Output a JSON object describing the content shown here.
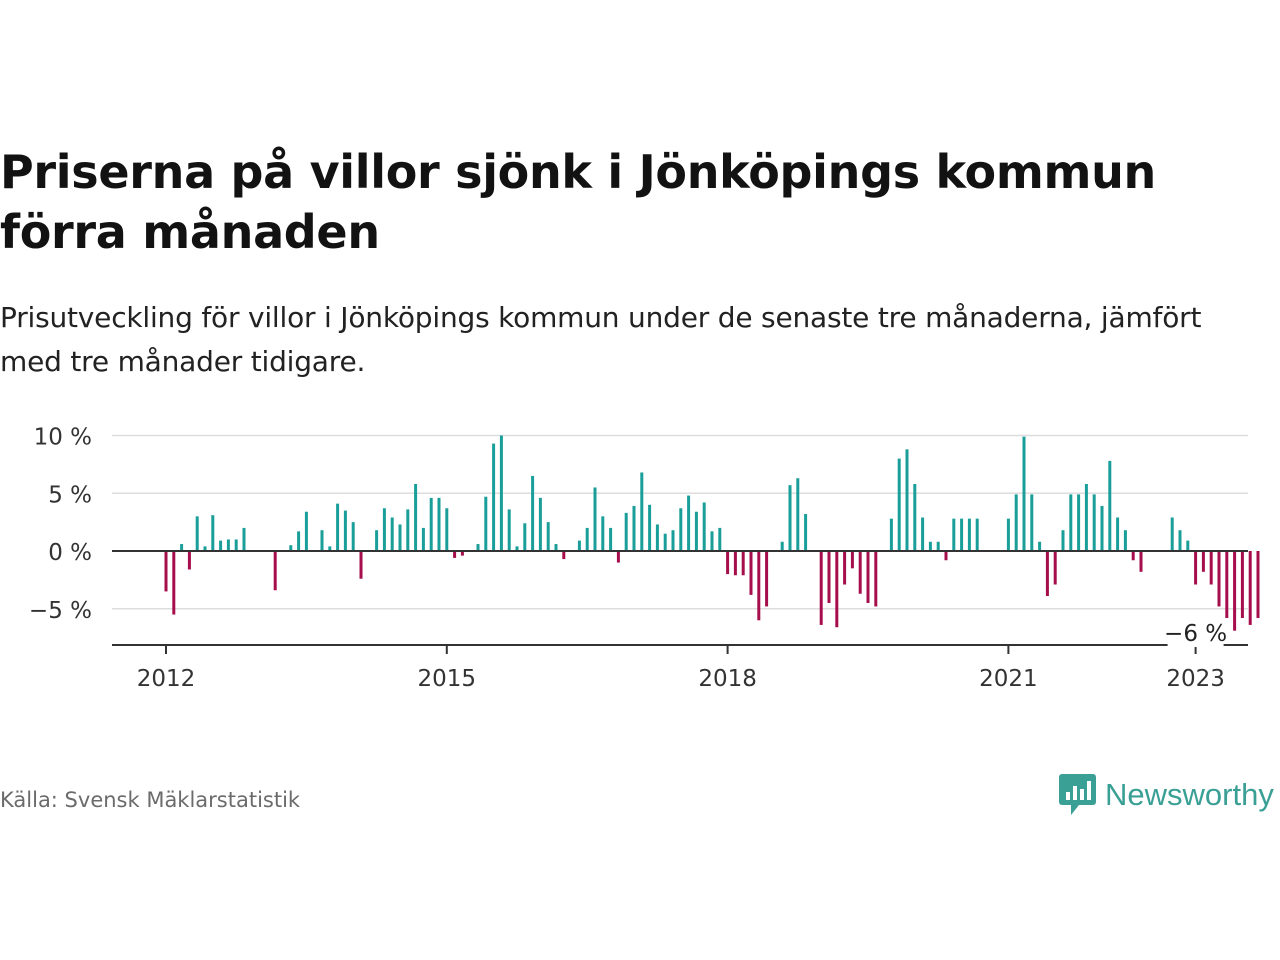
{
  "header": {
    "title": "Priserna på villor sjönk i Jönköpings kommun förra månaden",
    "subtitle": "Prisutveckling för villor i Jönköpings kommun under de senaste tre månaderna, jämfört med tre månader tidigare."
  },
  "footer": {
    "source": "Källa: Svensk Mäklarstatistik",
    "brand": "Newsworthy"
  },
  "colors": {
    "positive": "#1a9e99",
    "negative": "#a50d4b",
    "zero_line": "#333333",
    "grid": "#dddddd",
    "brand": "#3a9f95"
  },
  "chart_data": {
    "type": "bar",
    "title": "",
    "xlabel": "",
    "ylabel": "",
    "ylim": [
      -8,
      10
    ],
    "y_ticks": [
      10,
      5,
      0,
      -5
    ],
    "y_tick_labels": [
      "10 %",
      "5 %",
      "0 %",
      "−5 %"
    ],
    "x_tick_labels": [
      "2012",
      "2015",
      "2018",
      "2021",
      "2023"
    ],
    "x_ticks": [
      2012,
      2015,
      2018,
      2021,
      2023
    ],
    "x_start": 2012,
    "months_per_year": 12,
    "grid": true,
    "legend": "none",
    "annotation": {
      "text": "−6 %",
      "index": 132
    },
    "values": [
      -3.5,
      -5.5,
      0.6,
      -1.6,
      3.0,
      0.4,
      3.1,
      0.9,
      1.0,
      1.0,
      2.0,
      null,
      null,
      null,
      -3.4,
      null,
      0.5,
      1.7,
      3.4,
      null,
      1.8,
      0.4,
      4.1,
      3.5,
      2.5,
      -2.4,
      null,
      1.8,
      3.7,
      2.9,
      2.3,
      3.6,
      5.8,
      2.0,
      4.6,
      4.6,
      3.7,
      -0.6,
      -0.4,
      null,
      0.6,
      4.7,
      9.3,
      10.0,
      3.6,
      0.4,
      2.4,
      6.5,
      4.6,
      2.5,
      0.6,
      -0.7,
      null,
      0.9,
      2.0,
      5.5,
      3.0,
      2.0,
      -1.0,
      3.3,
      3.9,
      6.8,
      4.0,
      2.3,
      1.5,
      1.8,
      3.7,
      4.8,
      3.4,
      4.2,
      1.7,
      2.0,
      -2.0,
      -2.1,
      -2.1,
      -3.8,
      -6.0,
      -4.8,
      null,
      0.8,
      5.7,
      6.3,
      3.2,
      null,
      -6.4,
      -4.5,
      -6.6,
      -2.9,
      -1.5,
      -3.7,
      -4.5,
      -4.8,
      null,
      2.8,
      8.0,
      8.8,
      5.8,
      2.9,
      0.8,
      0.8,
      -0.8,
      2.8,
      2.8,
      2.8,
      2.8,
      null,
      null,
      null,
      2.8,
      4.9,
      9.9,
      4.9,
      0.8,
      -3.9,
      -2.9,
      1.8,
      4.9,
      4.9,
      5.8,
      4.9,
      3.9,
      7.8,
      2.9,
      1.8,
      -0.8,
      -1.8,
      null,
      null,
      null,
      2.9,
      1.8,
      0.9,
      -2.9,
      -1.8,
      -2.9,
      -4.8,
      -5.8,
      -6.9,
      -5.8,
      -6.4,
      -5.8
    ]
  }
}
